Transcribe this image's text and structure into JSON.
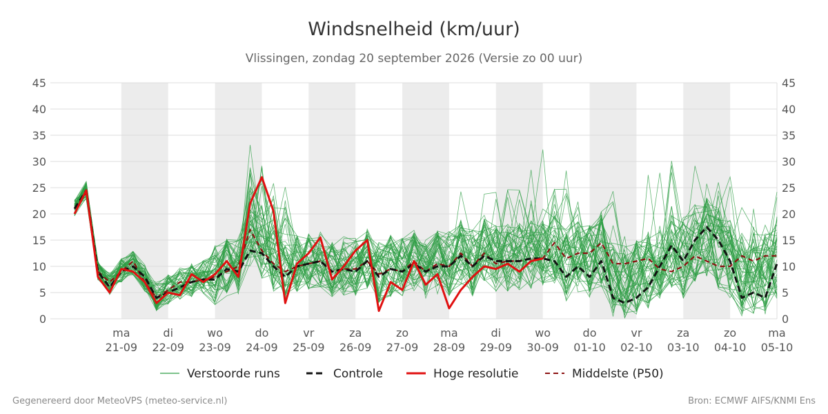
{
  "title": "Windsnelheid (km/uur)",
  "subtitle": "Vlissingen, zondag 20 september 2026 (Versie zo 00 uur)",
  "footer_left": "Gegenereerd door MeteoVPS (meteo-service.nl)",
  "footer_right": "Bron: ECMWF AIFS/KNMI Ens",
  "chart_data": {
    "type": "line",
    "title": "Windsnelheid (km/uur)",
    "x_unit": "days since start of chart",
    "xlim": [
      0,
      15
    ],
    "ylim": [
      0,
      45
    ],
    "yticks": [
      0,
      5,
      10,
      15,
      20,
      25,
      30,
      35,
      40,
      45
    ],
    "grid": true,
    "legend_position": "bottom",
    "day_ticks": [
      {
        "x": 1,
        "day": "ma",
        "date": "21-09"
      },
      {
        "x": 2,
        "day": "di",
        "date": "22-09"
      },
      {
        "x": 3,
        "day": "wo",
        "date": "23-09"
      },
      {
        "x": 4,
        "day": "do",
        "date": "24-09"
      },
      {
        "x": 5,
        "day": "vr",
        "date": "25-09"
      },
      {
        "x": 6,
        "day": "za",
        "date": "26-09"
      },
      {
        "x": 7,
        "day": "zo",
        "date": "27-09"
      },
      {
        "x": 8,
        "day": "ma",
        "date": "28-09"
      },
      {
        "x": 9,
        "day": "di",
        "date": "29-09"
      },
      {
        "x": 10,
        "day": "wo",
        "date": "30-09"
      },
      {
        "x": 11,
        "day": "do",
        "date": "01-10"
      },
      {
        "x": 12,
        "day": "vr",
        "date": "02-10"
      },
      {
        "x": 13,
        "day": "za",
        "date": "03-10"
      },
      {
        "x": 14,
        "day": "zo",
        "date": "04-10"
      },
      {
        "x": 15,
        "day": "ma",
        "date": "05-10"
      }
    ],
    "shaded_days": [
      [
        1,
        2
      ],
      [
        3,
        4
      ],
      [
        5,
        6
      ],
      [
        7,
        8
      ],
      [
        9,
        10
      ],
      [
        11,
        12
      ],
      [
        13,
        14
      ]
    ],
    "legend": [
      "Verstoorde runs",
      "Controle",
      "Hoge resolutie",
      "Middelste (P50)"
    ],
    "colors": {
      "ensemble": "#2e9e44",
      "controle": "#111111",
      "hoge_resolutie": "#e01010",
      "p50": "#8b1010",
      "shade": "#ececec",
      "grid": "#dddddd"
    },
    "ensemble_count": 50,
    "series": [
      {
        "name": "Hoge resolutie",
        "x": [
          0,
          0.25,
          0.5,
          0.75,
          1,
          1.25,
          1.5,
          1.75,
          2,
          2.25,
          2.5,
          2.75,
          3,
          3.25,
          3.5,
          3.75,
          4,
          4.25,
          4.5,
          4.75,
          5,
          5.25,
          5.5,
          5.75,
          6,
          6.25,
          6.5,
          6.75,
          7,
          7.25,
          7.5,
          7.75,
          8,
          8.25,
          8.5,
          8.75,
          9,
          9.25,
          9.5,
          9.75,
          10
        ],
        "values": [
          20,
          24.5,
          8,
          5,
          9.5,
          9,
          7,
          3,
          5,
          4.5,
          8.5,
          7,
          8.5,
          11,
          8,
          22,
          27,
          20.5,
          3,
          10.5,
          12.5,
          15.5,
          7.5,
          10,
          13,
          15,
          1.5,
          7,
          5.5,
          11,
          6.5,
          8.5,
          2,
          5.5,
          8,
          10,
          9.5,
          10.5,
          9,
          11,
          11.5
        ]
      },
      {
        "name": "Controle",
        "x": [
          0,
          0.25,
          0.5,
          0.75,
          1,
          1.25,
          1.5,
          1.75,
          2,
          2.25,
          2.5,
          2.75,
          3,
          3.25,
          3.5,
          3.75,
          4,
          4.25,
          4.5,
          4.75,
          5,
          5.25,
          5.5,
          5.75,
          6,
          6.25,
          6.5,
          6.75,
          7,
          7.25,
          7.5,
          7.75,
          8,
          8.25,
          8.5,
          8.75,
          9,
          9.25,
          9.5,
          9.75,
          10,
          10.25,
          10.5,
          10.75,
          11,
          11.25,
          11.5,
          11.75,
          12,
          12.25,
          12.5,
          12.75,
          13,
          13.25,
          13.5,
          13.75,
          14,
          14.25,
          14.5,
          14.75,
          15
        ],
        "values": [
          21,
          24.5,
          9,
          6,
          9,
          10,
          8,
          4,
          5,
          6,
          7,
          7.5,
          7.5,
          9.5,
          9,
          13,
          12.5,
          10,
          8,
          10,
          10.5,
          11,
          9,
          9.5,
          9,
          11,
          8,
          9.5,
          9,
          10.5,
          9,
          10,
          10,
          12,
          10,
          12,
          11,
          11,
          11,
          11.5,
          11.5,
          11,
          8,
          10,
          8,
          11,
          4,
          3,
          4,
          6,
          10,
          14,
          11,
          15,
          17.5,
          15,
          11,
          4,
          5,
          4,
          10.5
        ]
      },
      {
        "name": "Middelste (P50)",
        "x": [
          0,
          0.25,
          0.5,
          0.75,
          1,
          1.25,
          1.5,
          1.75,
          2,
          2.25,
          2.5,
          2.75,
          3,
          3.25,
          3.5,
          3.75,
          4,
          4.25,
          4.5,
          4.75,
          5,
          5.25,
          5.5,
          5.75,
          6,
          6.25,
          6.5,
          6.75,
          7,
          7.25,
          7.5,
          7.75,
          8,
          8.25,
          8.5,
          8.75,
          9,
          9.25,
          9.5,
          9.75,
          10,
          10.25,
          10.5,
          10.75,
          11,
          11.25,
          11.5,
          11.75,
          12,
          12.25,
          12.5,
          12.75,
          13,
          13.25,
          13.5,
          13.75,
          14,
          14.25,
          14.5,
          14.75,
          15
        ],
        "values": [
          21,
          24,
          9,
          7,
          9,
          11,
          7,
          4,
          5.5,
          7,
          7,
          7.5,
          8,
          9,
          10,
          17,
          13,
          10.5,
          9,
          10,
          10.5,
          11,
          9,
          9.5,
          9.5,
          11,
          8.5,
          9.5,
          9,
          11,
          9,
          10.5,
          10,
          12.5,
          10,
          12.5,
          10.5,
          11,
          11,
          11.5,
          11.5,
          14.5,
          11.5,
          12.5,
          12.5,
          14.5,
          10.5,
          10.5,
          11,
          11.5,
          9.5,
          9,
          10,
          12,
          11,
          10,
          10,
          12,
          11,
          12,
          12
        ]
      }
    ]
  }
}
